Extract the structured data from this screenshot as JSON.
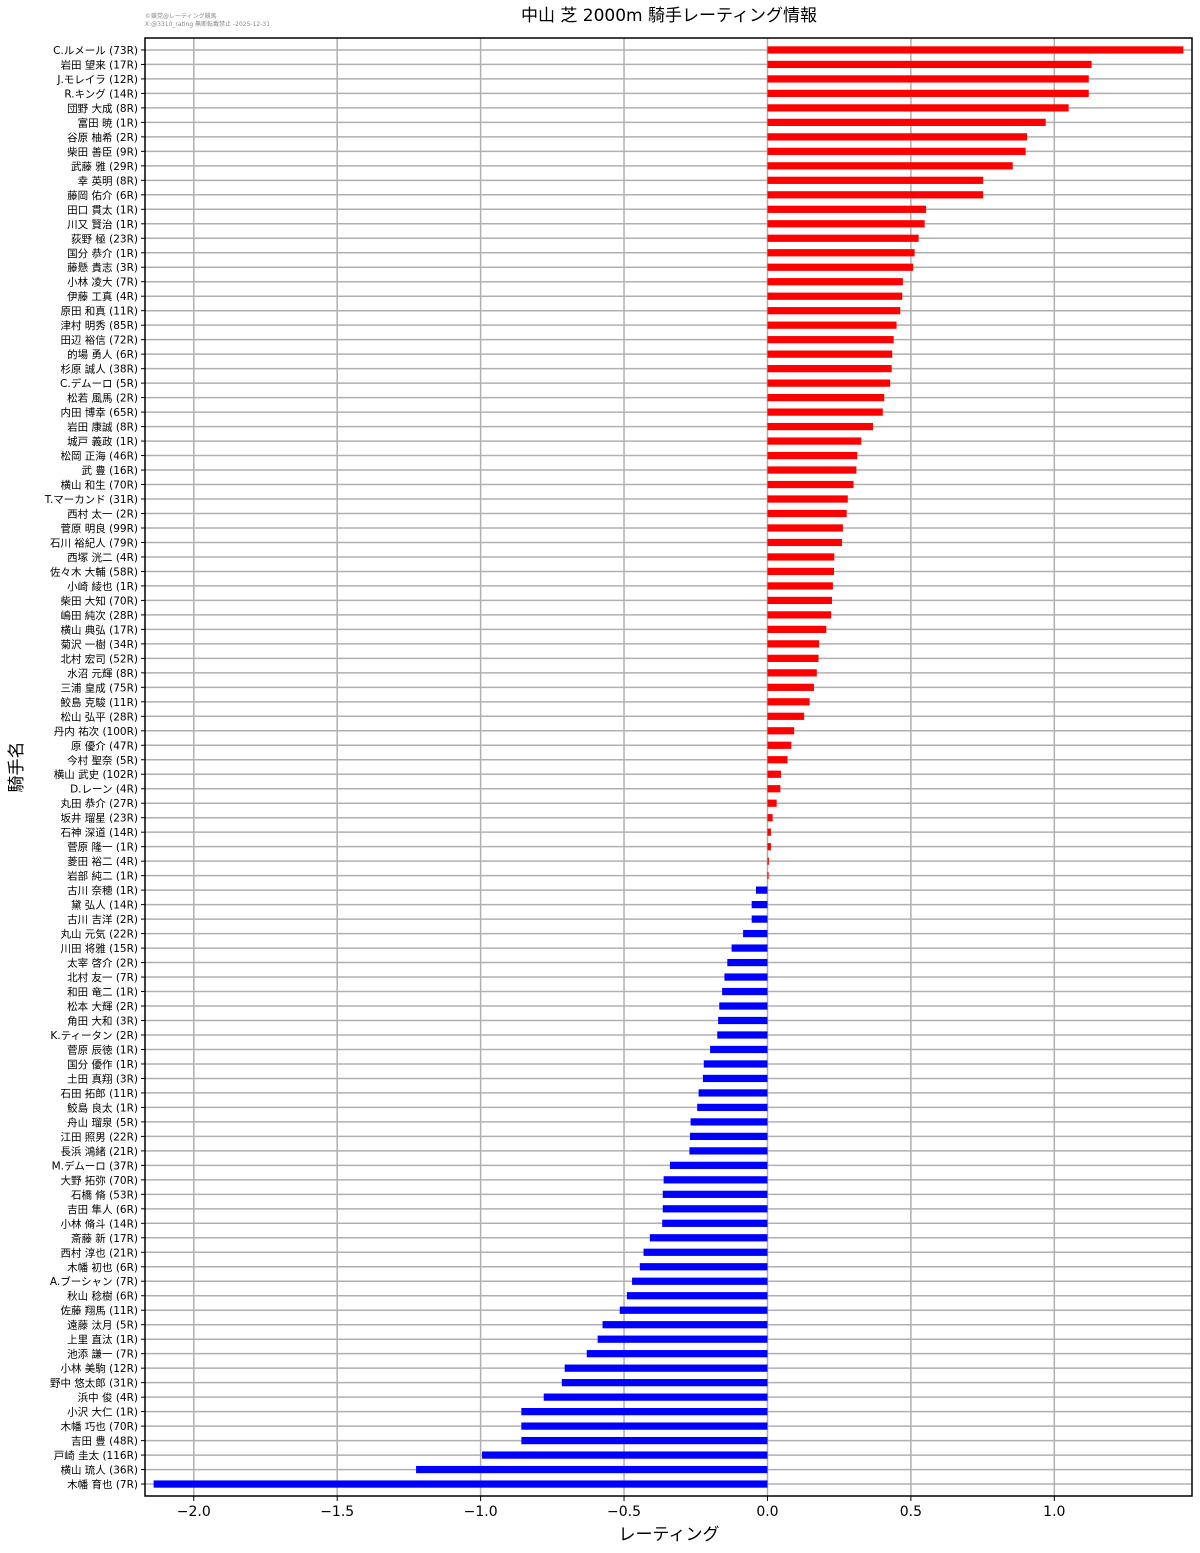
{
  "credit": {
    "line1": "©競党@レーティング競馬",
    "line2": "X:@3310_rating 無断転載禁止 -2025-12-31"
  },
  "chart_data": {
    "type": "bar",
    "orientation": "horizontal",
    "title": "中山 芝 2000m 騎手レーティング情報",
    "xlabel": "レーティング",
    "ylabel": "騎手名",
    "xlim": [
      -2.17,
      1.48
    ],
    "xticks": [
      -2.0,
      -1.5,
      -1.0,
      -0.5,
      0.0,
      0.5,
      1.0
    ],
    "xtick_labels": [
      "−2.0",
      "−1.5",
      "−1.0",
      "−0.5",
      "0.0",
      "0.5",
      "1.0"
    ],
    "grid": true,
    "colors": {
      "positive": "#ff0000",
      "negative": "#0000ff",
      "grid": "#b0b0b0",
      "axes": "#000000"
    },
    "categories": [
      "C.ルメール (73R)",
      "岩田 望来 (17R)",
      "J.モレイラ (12R)",
      "R.キング (14R)",
      "団野 大成 (8R)",
      "富田 暁 (1R)",
      "谷原 柚希 (2R)",
      "柴田 善臣 (9R)",
      "武藤 雅 (29R)",
      "幸 英明 (8R)",
      "藤岡 佑介 (6R)",
      "田口 貫太 (1R)",
      "川又 賢治 (1R)",
      "荻野 極 (23R)",
      "国分 恭介 (1R)",
      "藤懸 貴志 (3R)",
      "小林 凌大 (7R)",
      "伊藤 工真 (4R)",
      "原田 和真 (11R)",
      "津村 明秀 (85R)",
      "田辺 裕信 (72R)",
      "的場 勇人 (6R)",
      "杉原 誠人 (38R)",
      "C.デムーロ (5R)",
      "松若 風馬 (2R)",
      "内田 博幸 (65R)",
      "岩田 康誠 (8R)",
      "城戸 義政 (1R)",
      "松岡 正海 (46R)",
      "武 豊 (16R)",
      "横山 和生 (70R)",
      "T.マーカンド (31R)",
      "西村 太一 (2R)",
      "菅原 明良 (99R)",
      "石川 裕紀人 (79R)",
      "西塚 洸二 (4R)",
      "佐々木 大輔 (58R)",
      "小崎 綾也 (1R)",
      "柴田 大知 (70R)",
      "嶋田 純次 (28R)",
      "横山 典弘 (17R)",
      "菊沢 一樹 (34R)",
      "北村 宏司 (52R)",
      "水沼 元輝 (8R)",
      "三浦 皇成 (75R)",
      "鮫島 克駿 (11R)",
      "松山 弘平 (28R)",
      "丹内 祐次 (100R)",
      "原 優介 (47R)",
      "今村 聖奈 (5R)",
      "横山 武史 (102R)",
      "D.レーン (4R)",
      "丸田 恭介 (27R)",
      "坂井 瑠星 (23R)",
      "石神 深道 (14R)",
      "菅原 隆一 (1R)",
      "菱田 裕二 (4R)",
      "岩部 純二 (1R)",
      "古川 奈穂 (1R)",
      "黛 弘人 (14R)",
      "古川 吉洋 (2R)",
      "丸山 元気 (22R)",
      "川田 将雅 (15R)",
      "太宰 啓介 (2R)",
      "北村 友一 (7R)",
      "和田 竜二 (1R)",
      "松本 大輝 (2R)",
      "角田 大和 (3R)",
      "K.ティータン (2R)",
      "菅原 辰徳 (1R)",
      "国分 優作 (1R)",
      "土田 真翔 (3R)",
      "石田 拓郎 (11R)",
      "鮫島 良太 (1R)",
      "舟山 瑠泉 (5R)",
      "江田 照男 (22R)",
      "長浜 鴻緒 (21R)",
      "M.デムーロ (37R)",
      "大野 拓弥 (70R)",
      "石橋 脩 (53R)",
      "吉田 隼人 (6R)",
      "小林 脩斗 (14R)",
      "斎藤 新 (17R)",
      "西村 淳也 (21R)",
      "木幡 初也 (6R)",
      "A.ブーシャン (7R)",
      "秋山 稔樹 (6R)",
      "佐藤 翔馬 (11R)",
      "遠藤 汰月 (5R)",
      "上里 直汰 (1R)",
      "池添 謙一 (7R)",
      "小林 美駒 (12R)",
      "野中 悠太郎 (31R)",
      "浜中 俊 (4R)",
      "小沢 大仁 (1R)",
      "木幡 巧也 (70R)",
      "吉田 豊 (48R)",
      "戸崎 圭太 (116R)",
      "横山 琉人 (36R)",
      "木幡 育也 (7R)"
    ],
    "values": [
      1.45,
      1.13,
      1.12,
      1.12,
      1.05,
      0.97,
      0.905,
      0.9,
      0.855,
      0.752,
      0.752,
      0.553,
      0.548,
      0.527,
      0.513,
      0.508,
      0.472,
      0.47,
      0.463,
      0.45,
      0.44,
      0.435,
      0.433,
      0.428,
      0.407,
      0.402,
      0.368,
      0.327,
      0.313,
      0.31,
      0.3,
      0.28,
      0.276,
      0.263,
      0.26,
      0.233,
      0.232,
      0.228,
      0.225,
      0.222,
      0.205,
      0.18,
      0.178,
      0.172,
      0.162,
      0.147,
      0.128,
      0.093,
      0.083,
      0.07,
      0.047,
      0.045,
      0.032,
      0.018,
      0.012,
      0.012,
      0.005,
      0.004,
      -0.04,
      -0.055,
      -0.055,
      -0.085,
      -0.125,
      -0.14,
      -0.15,
      -0.158,
      -0.168,
      -0.172,
      -0.175,
      -0.2,
      -0.222,
      -0.225,
      -0.24,
      -0.245,
      -0.268,
      -0.27,
      -0.272,
      -0.34,
      -0.362,
      -0.365,
      -0.365,
      -0.367,
      -0.41,
      -0.432,
      -0.445,
      -0.472,
      -0.49,
      -0.515,
      -0.575,
      -0.592,
      -0.63,
      -0.707,
      -0.717,
      -0.78,
      -0.858,
      -0.858,
      -0.858,
      -0.995,
      -1.225,
      -2.14
    ]
  }
}
